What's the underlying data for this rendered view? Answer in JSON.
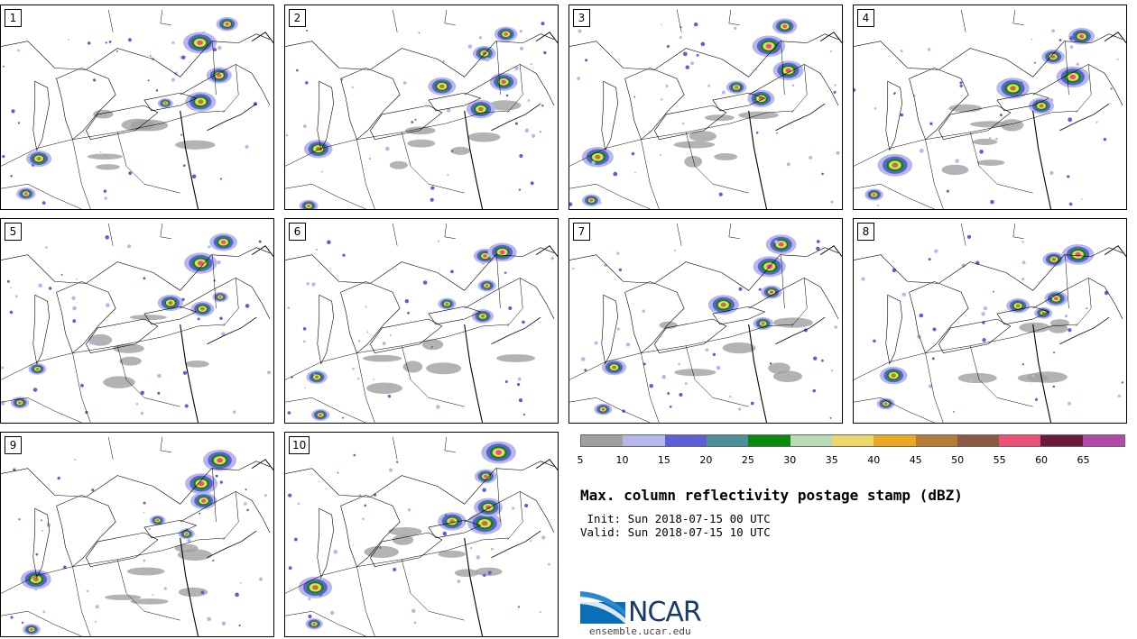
{
  "panels": [
    {
      "label": "1"
    },
    {
      "label": "2"
    },
    {
      "label": "3"
    },
    {
      "label": "4"
    },
    {
      "label": "5"
    },
    {
      "label": "6"
    },
    {
      "label": "7"
    },
    {
      "label": "8"
    },
    {
      "label": "9"
    },
    {
      "label": "10"
    }
  ],
  "colorbar": {
    "colors": [
      "#a0a0a0",
      "#b4b8ea",
      "#5c5fd6",
      "#4e8f99",
      "#0a8a0a",
      "#b8dcb8",
      "#ecd868",
      "#eca822",
      "#b47c34",
      "#8c5a42",
      "#ec5078",
      "#6a1a3a",
      "#b04aaa"
    ],
    "ticks": [
      "5",
      "10",
      "15",
      "20",
      "25",
      "30",
      "35",
      "40",
      "45",
      "50",
      "55",
      "60",
      "65"
    ]
  },
  "title": "Max. column reflectivity postage stamp (dBZ)",
  "init": " Init: Sun 2018-07-15 00 UTC",
  "valid": "Valid: Sun 2018-07-15 10 UTC",
  "logo": {
    "text": "NCAR",
    "url": "ensemble.ucar.edu"
  }
}
